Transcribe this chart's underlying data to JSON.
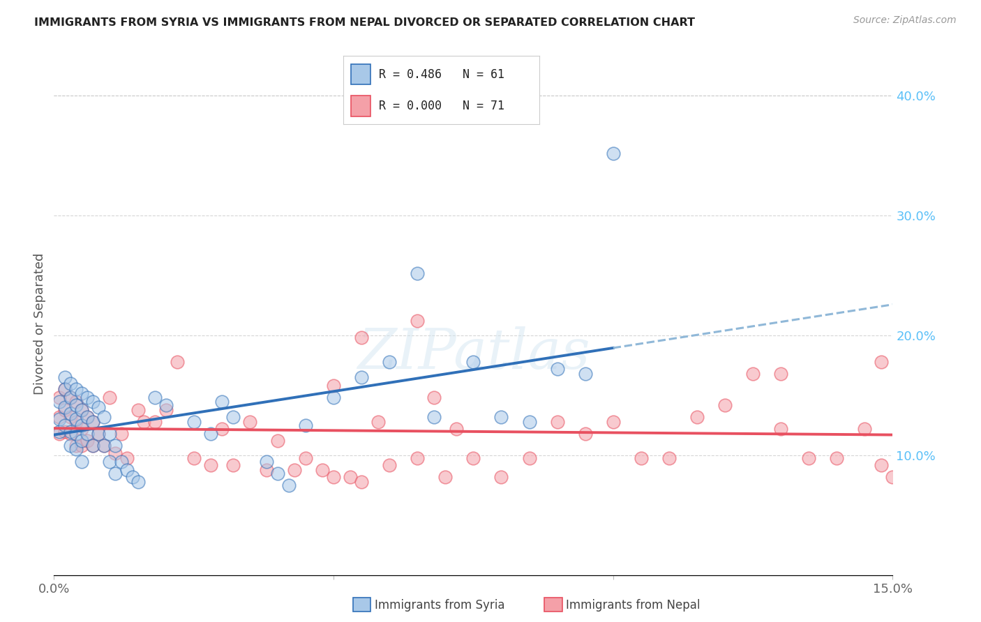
{
  "title": "IMMIGRANTS FROM SYRIA VS IMMIGRANTS FROM NEPAL DIVORCED OR SEPARATED CORRELATION CHART",
  "source": "Source: ZipAtlas.com",
  "ylabel": "Divorced or Separated",
  "watermark": "ZIPatlas",
  "legend_syria": "Immigrants from Syria",
  "legend_nepal": "Immigrants from Nepal",
  "syria_R": "0.486",
  "syria_N": "61",
  "nepal_R": "0.000",
  "nepal_N": "71",
  "xlim": [
    0.0,
    0.15
  ],
  "ylim": [
    0.0,
    0.42
  ],
  "syria_color": "#a8c8e8",
  "nepal_color": "#f4a0a8",
  "syria_line_color": "#3070b8",
  "nepal_line_color": "#e85060",
  "dashed_color": "#90b8d8",
  "background_color": "#ffffff",
  "grid_color": "#cccccc",
  "title_color": "#222222",
  "right_axis_color": "#5bc0f8",
  "syria_x": [
    0.001,
    0.001,
    0.001,
    0.002,
    0.002,
    0.002,
    0.002,
    0.003,
    0.003,
    0.003,
    0.003,
    0.003,
    0.004,
    0.004,
    0.004,
    0.004,
    0.004,
    0.005,
    0.005,
    0.005,
    0.005,
    0.005,
    0.006,
    0.006,
    0.006,
    0.007,
    0.007,
    0.007,
    0.008,
    0.008,
    0.009,
    0.009,
    0.01,
    0.01,
    0.011,
    0.011,
    0.012,
    0.013,
    0.014,
    0.015,
    0.018,
    0.02,
    0.025,
    0.028,
    0.03,
    0.032,
    0.038,
    0.04,
    0.042,
    0.045,
    0.05,
    0.055,
    0.06,
    0.065,
    0.068,
    0.075,
    0.08,
    0.085,
    0.09,
    0.095,
    0.1
  ],
  "syria_y": [
    0.145,
    0.13,
    0.12,
    0.165,
    0.155,
    0.14,
    0.125,
    0.16,
    0.148,
    0.135,
    0.12,
    0.108,
    0.155,
    0.142,
    0.13,
    0.118,
    0.105,
    0.152,
    0.138,
    0.125,
    0.112,
    0.095,
    0.148,
    0.132,
    0.118,
    0.145,
    0.128,
    0.108,
    0.14,
    0.118,
    0.132,
    0.108,
    0.118,
    0.095,
    0.108,
    0.085,
    0.095,
    0.088,
    0.082,
    0.078,
    0.148,
    0.142,
    0.128,
    0.118,
    0.145,
    0.132,
    0.095,
    0.085,
    0.075,
    0.125,
    0.148,
    0.165,
    0.178,
    0.252,
    0.132,
    0.178,
    0.132,
    0.128,
    0.172,
    0.168,
    0.352
  ],
  "nepal_x": [
    0.001,
    0.001,
    0.001,
    0.002,
    0.002,
    0.002,
    0.003,
    0.003,
    0.003,
    0.004,
    0.004,
    0.004,
    0.005,
    0.005,
    0.005,
    0.006,
    0.006,
    0.007,
    0.007,
    0.008,
    0.009,
    0.01,
    0.011,
    0.012,
    0.013,
    0.015,
    0.016,
    0.018,
    0.02,
    0.022,
    0.025,
    0.028,
    0.03,
    0.032,
    0.035,
    0.038,
    0.04,
    0.043,
    0.045,
    0.048,
    0.05,
    0.053,
    0.055,
    0.058,
    0.06,
    0.065,
    0.068,
    0.07,
    0.075,
    0.08,
    0.085,
    0.09,
    0.095,
    0.1,
    0.105,
    0.11,
    0.115,
    0.12,
    0.125,
    0.13,
    0.135,
    0.14,
    0.145,
    0.148,
    0.15,
    0.05,
    0.055,
    0.065,
    0.072,
    0.13,
    0.148
  ],
  "nepal_y": [
    0.148,
    0.132,
    0.118,
    0.155,
    0.138,
    0.12,
    0.148,
    0.132,
    0.118,
    0.145,
    0.128,
    0.108,
    0.138,
    0.122,
    0.108,
    0.132,
    0.112,
    0.128,
    0.108,
    0.118,
    0.108,
    0.148,
    0.102,
    0.118,
    0.098,
    0.138,
    0.128,
    0.128,
    0.138,
    0.178,
    0.098,
    0.092,
    0.122,
    0.092,
    0.128,
    0.088,
    0.112,
    0.088,
    0.098,
    0.088,
    0.082,
    0.082,
    0.078,
    0.128,
    0.092,
    0.098,
    0.148,
    0.082,
    0.098,
    0.082,
    0.098,
    0.128,
    0.118,
    0.128,
    0.098,
    0.098,
    0.132,
    0.142,
    0.168,
    0.122,
    0.098,
    0.098,
    0.122,
    0.092,
    0.082,
    0.158,
    0.198,
    0.212,
    0.122,
    0.168,
    0.178
  ]
}
